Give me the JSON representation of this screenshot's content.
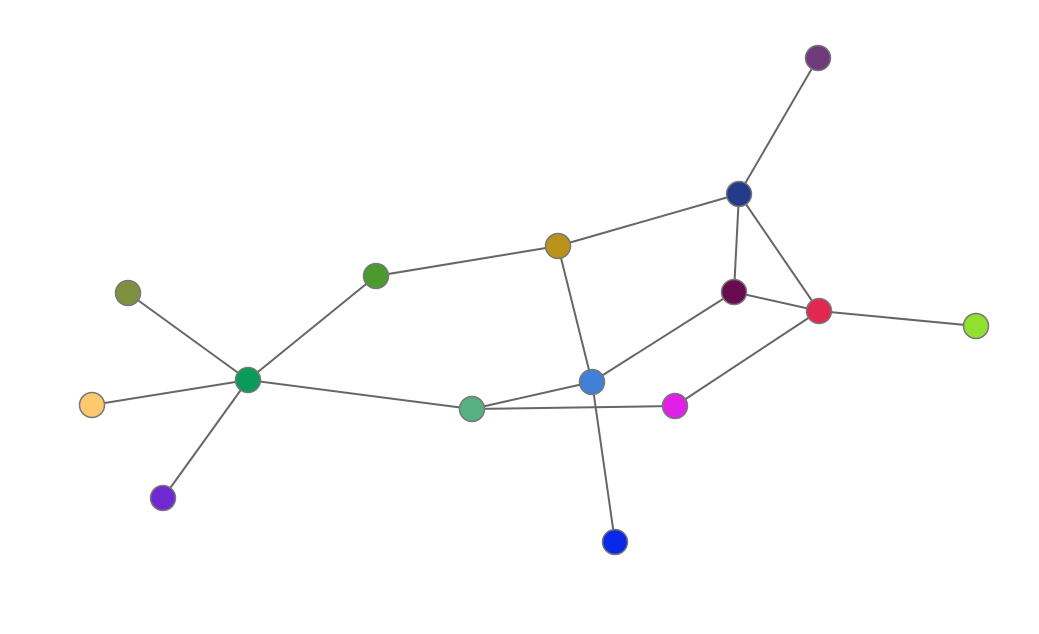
{
  "nodes": [
    {
      "color": "#6e3a7a"
    },
    {
      "color": "#243a8a"
    },
    {
      "color": "#b8921a"
    },
    {
      "color": "#4a9a30"
    },
    {
      "color": "#7e9040"
    },
    {
      "color": "#6a0a50"
    },
    {
      "color": "#e02850"
    },
    {
      "color": "#90e030"
    },
    {
      "color": "#0a9a5a"
    },
    {
      "color": "#fcc870"
    },
    {
      "color": "#4080d8"
    },
    {
      "color": "#58b080"
    },
    {
      "color": "#e020e8"
    },
    {
      "color": "#7028d0"
    },
    {
      "color": "#0a28e8"
    }
  ],
  "edges": [
    [
      0,
      1
    ],
    [
      1,
      2
    ],
    [
      1,
      5
    ],
    [
      1,
      6
    ],
    [
      2,
      3
    ],
    [
      2,
      10
    ],
    [
      3,
      8
    ],
    [
      4,
      8
    ],
    [
      8,
      9
    ],
    [
      8,
      13
    ],
    [
      8,
      11
    ],
    [
      5,
      6
    ],
    [
      6,
      7
    ],
    [
      5,
      10
    ],
    [
      6,
      12
    ],
    [
      10,
      11
    ],
    [
      11,
      12
    ],
    [
      10,
      14
    ]
  ]
}
